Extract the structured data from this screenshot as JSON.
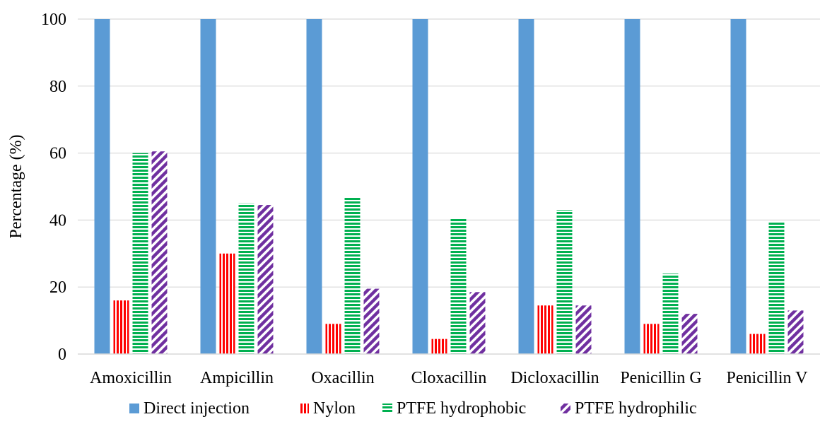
{
  "chart_data": {
    "type": "bar",
    "title": "",
    "xlabel": "",
    "ylabel": "Percentage (%)",
    "ylim": [
      0,
      100
    ],
    "yticks": [
      0,
      20,
      40,
      60,
      80,
      100
    ],
    "grid": true,
    "legend_position": "bottom",
    "categories": [
      "Amoxicillin",
      "Ampicillin",
      "Oxacillin",
      "Cloxacillin",
      "Dicloxacillin",
      "Penicillin G",
      "Penicillin V"
    ],
    "series": [
      {
        "name": "Direct injection",
        "color": "#5b9bd5",
        "pattern": "solid",
        "values": [
          100,
          100,
          100,
          100,
          100,
          100,
          100
        ]
      },
      {
        "name": "Nylon",
        "color": "#ff0000",
        "pattern": "vertical-stripes",
        "values": [
          16,
          30,
          9,
          4.5,
          14.5,
          9,
          6
        ]
      },
      {
        "name": "PTFE hydrophobic",
        "color": "#00b050",
        "pattern": "horizontal-stripes",
        "values": [
          60,
          45,
          47,
          40.5,
          43,
          24,
          39.5
        ]
      },
      {
        "name": "PTFE hydrophilic",
        "color": "#7030a0",
        "pattern": "diagonal-stripes",
        "values": [
          60.5,
          44.5,
          19.5,
          18.5,
          14.5,
          12,
          13
        ]
      }
    ]
  }
}
